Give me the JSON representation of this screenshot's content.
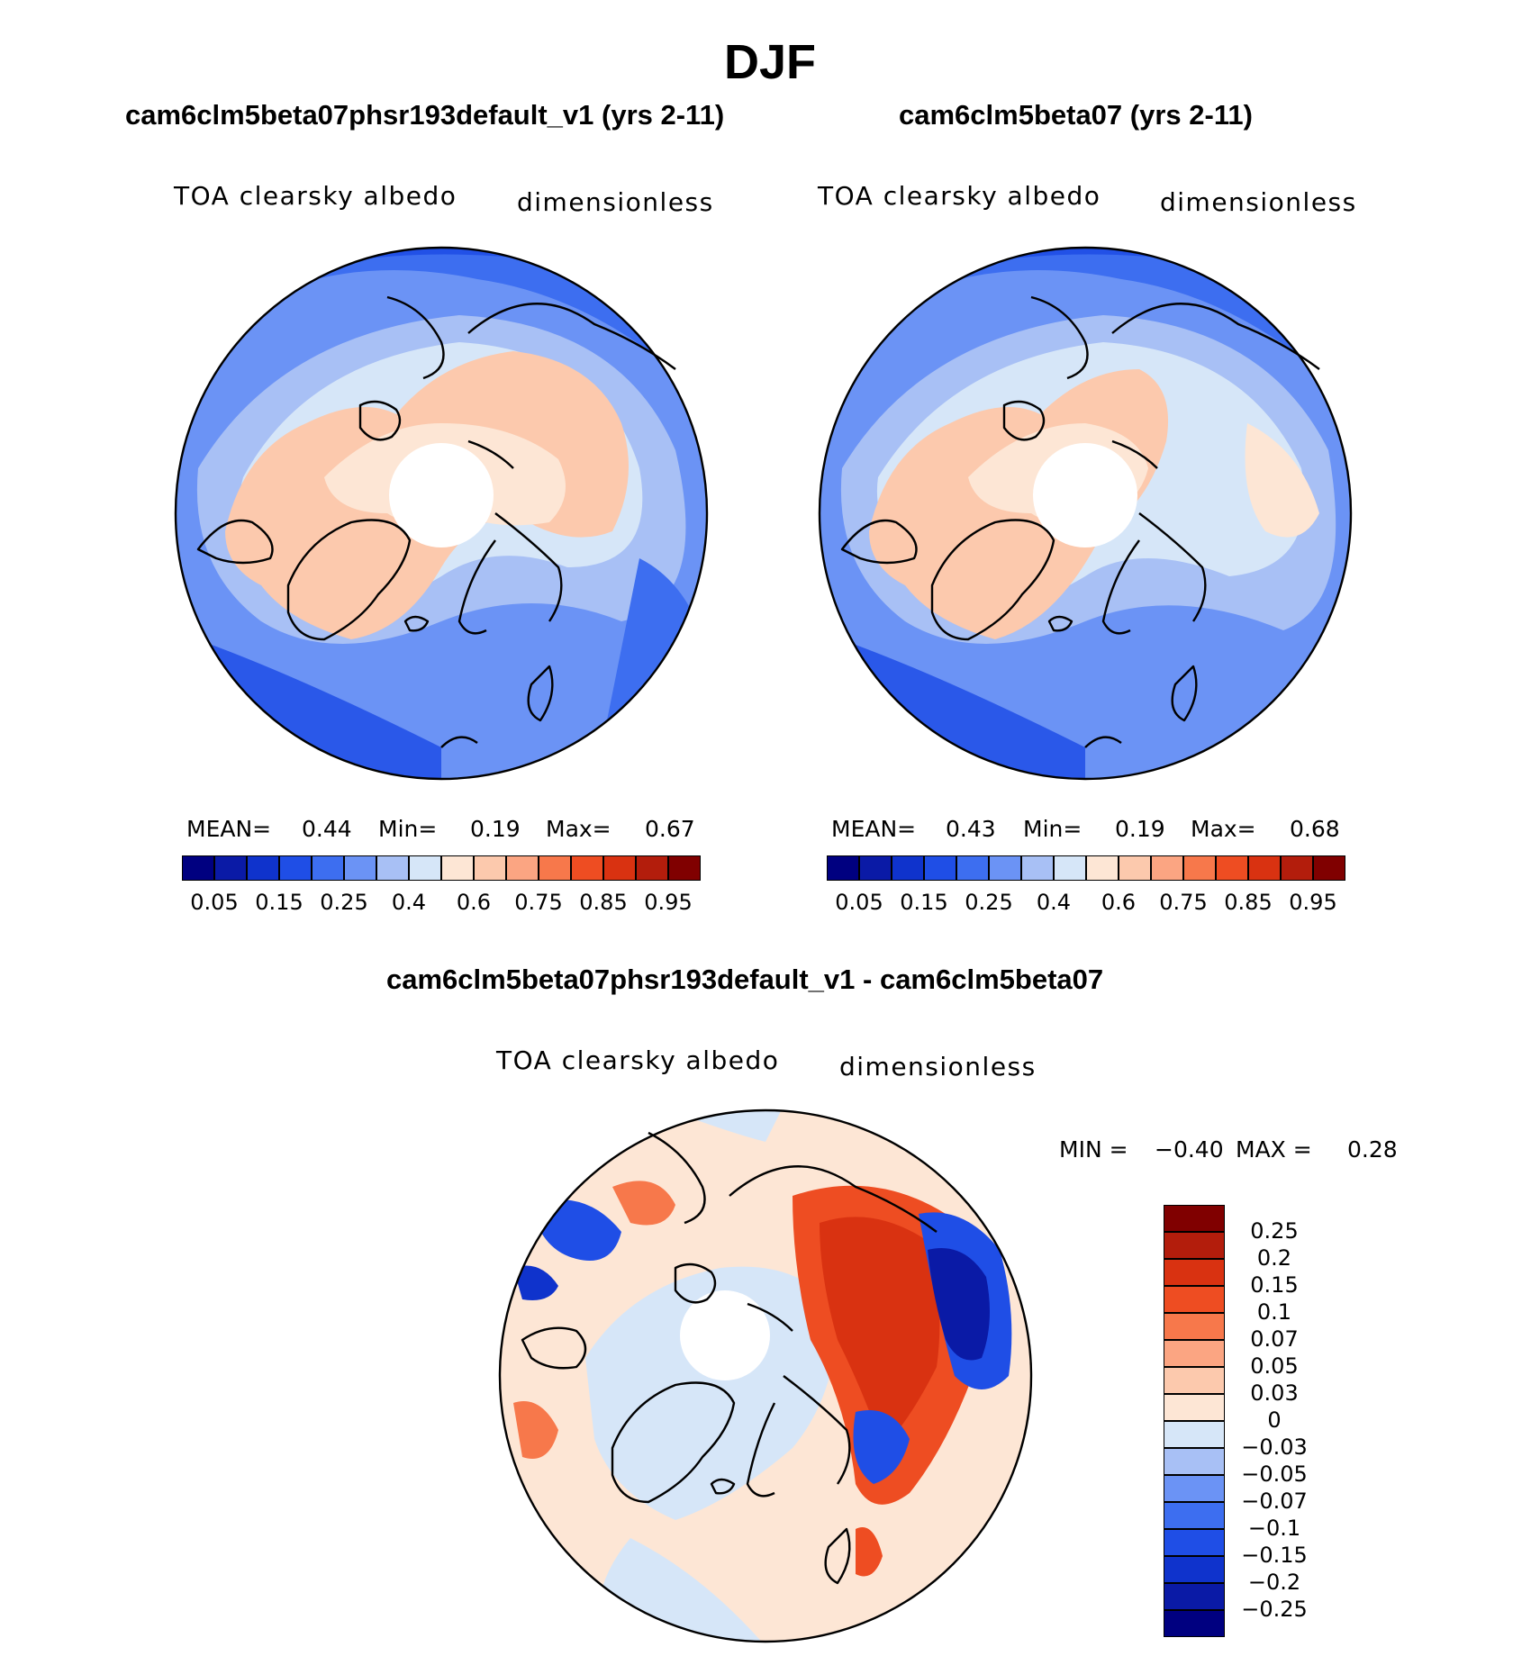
{
  "figure": {
    "season": "DJF"
  },
  "panels": [
    {
      "title": "cam6clm5beta07phsr193default_v1 (yrs 2-11)",
      "variable": "TOA clearsky albedo",
      "units": "dimensionless",
      "stats": {
        "mean_label": "MEAN=",
        "mean": "0.44",
        "min_label": "Min=",
        "min": "0.19",
        "max_label": "Max=",
        "max": "0.67"
      },
      "colorbar_ticks": [
        "0.05",
        "0.15",
        "0.25",
        "0.4",
        "0.6",
        "0.75",
        "0.85",
        "0.95"
      ]
    },
    {
      "title": "cam6clm5beta07 (yrs 2-11)",
      "variable": "TOA clearsky albedo",
      "units": "dimensionless",
      "stats": {
        "mean_label": "MEAN=",
        "mean": "0.43",
        "min_label": "Min=",
        "min": "0.19",
        "max_label": "Max=",
        "max": "0.68"
      },
      "colorbar_ticks": [
        "0.05",
        "0.15",
        "0.25",
        "0.4",
        "0.6",
        "0.75",
        "0.85",
        "0.95"
      ]
    }
  ],
  "diff_panel": {
    "title": "cam6clm5beta07phsr193default_v1 - cam6clm5beta07",
    "variable": "TOA clearsky albedo",
    "units": "dimensionless",
    "stats": {
      "min_label": "MIN =",
      "min": "−0.40",
      "max_label": "MAX =",
      "max": "0.28"
    },
    "colorbar_ticks": [
      "0.25",
      "0.2",
      "0.15",
      "0.1",
      "0.07",
      "0.05",
      "0.03",
      "0",
      "−0.03",
      "−0.05",
      "−0.07",
      "−0.1",
      "−0.15",
      "−0.2",
      "−0.25"
    ]
  },
  "colors": {
    "abs_scale": [
      "#000080",
      "#0a1aa6",
      "#0f33cc",
      "#1f4ee6",
      "#3d6ef0",
      "#6b93f5",
      "#a8c0f5",
      "#d6e6f8",
      "#fde6d5",
      "#fcc9ad",
      "#fba582",
      "#f7784b",
      "#ee4d22",
      "#d93211",
      "#b31d0c",
      "#800000"
    ],
    "diff_scale": [
      "#800000",
      "#b31d0c",
      "#d93211",
      "#ee4d22",
      "#f7784b",
      "#fba582",
      "#fcc9ad",
      "#fde6d5",
      "#d6e6f8",
      "#a8c0f5",
      "#6b93f5",
      "#3d6ef0",
      "#1f4ee6",
      "#0f33cc",
      "#0a1aa6",
      "#000080"
    ]
  },
  "chart_data": {
    "type": "map",
    "projection": "north polar stereographic",
    "season": "DJF",
    "variable": "TOA clearsky albedo",
    "units": "dimensionless",
    "panels": [
      {
        "case": "cam6clm5beta07phsr193default_v1 (yrs 2-11)",
        "mean": 0.44,
        "min": 0.19,
        "max": 0.67
      },
      {
        "case": "cam6clm5beta07 (yrs 2-11)",
        "mean": 0.43,
        "min": 0.19,
        "max": 0.68
      },
      {
        "case": "cam6clm5beta07phsr193default_v1 - cam6clm5beta07",
        "min": -0.4,
        "max": 0.28
      }
    ],
    "abs_levels": [
      0.05,
      0.1,
      0.15,
      0.2,
      0.25,
      0.3,
      0.4,
      0.5,
      0.6,
      0.7,
      0.75,
      0.8,
      0.85,
      0.9,
      0.95
    ],
    "diff_levels": [
      -0.25,
      -0.2,
      -0.15,
      -0.1,
      -0.07,
      -0.05,
      -0.03,
      0,
      0.03,
      0.05,
      0.07,
      0.1,
      0.15,
      0.2,
      0.25
    ]
  }
}
